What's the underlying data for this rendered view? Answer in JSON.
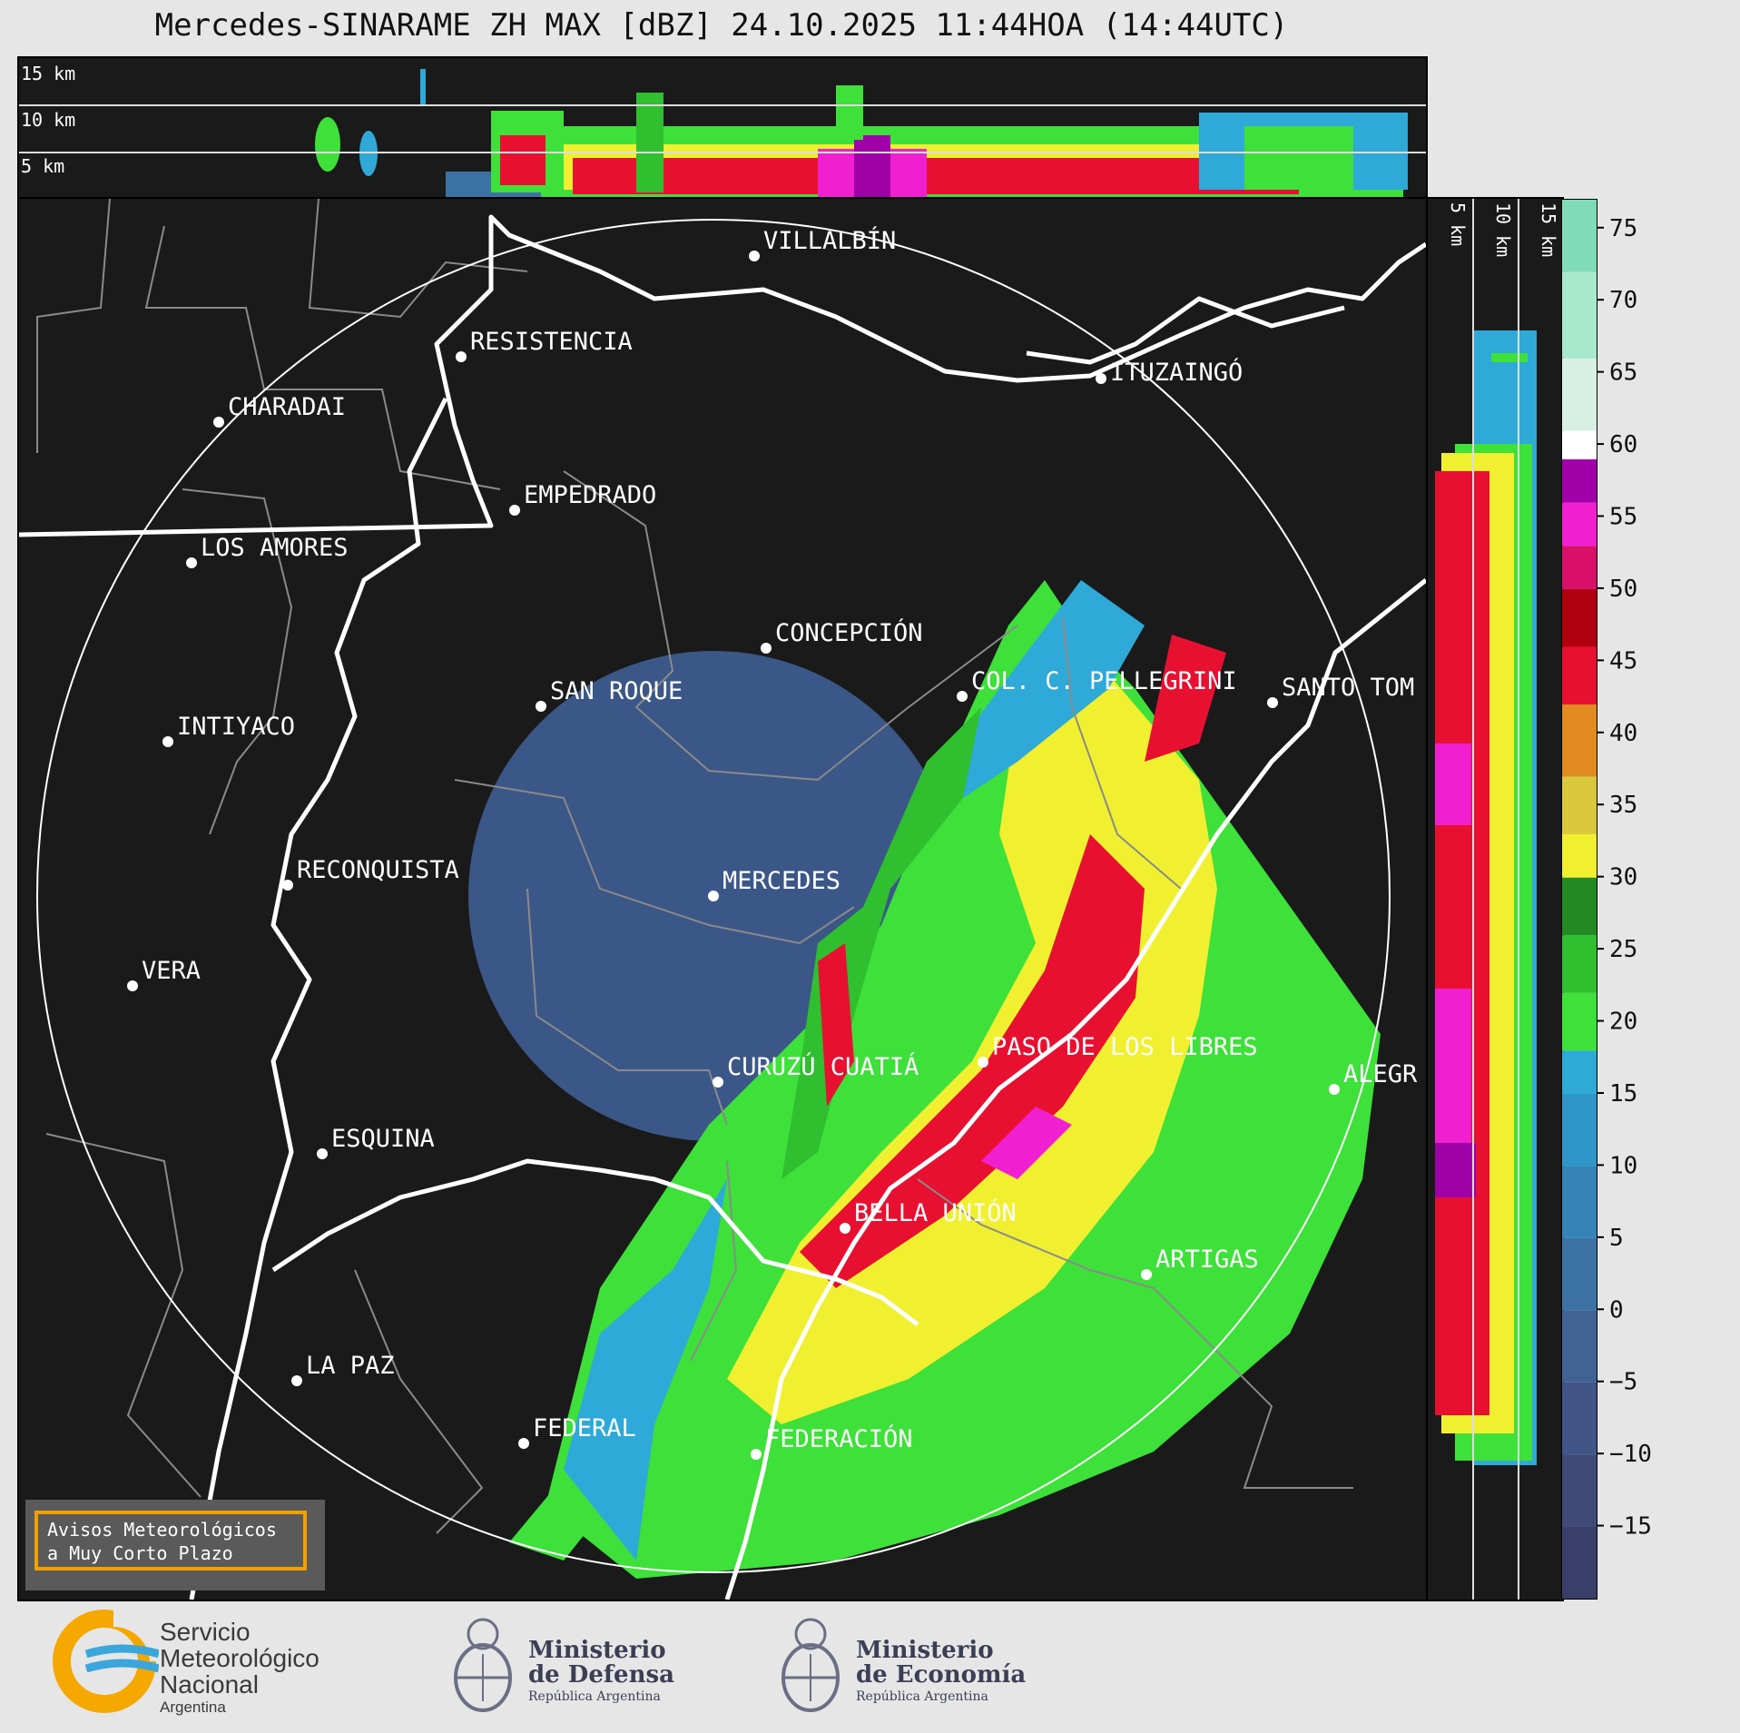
{
  "title": "Mercedes-SINARAME ZH MAX [dBZ] 24.10.2025 11:44HOA (14:44UTC)",
  "top_panel": {
    "height_labels": [
      "15 km",
      "10 km",
      "5 km"
    ]
  },
  "side_panel": {
    "height_labels": [
      "5 km",
      "10 km",
      "15 km"
    ]
  },
  "map": {
    "radar_site": "MERCEDES",
    "cities": [
      "VILLALBÍN",
      "RESISTENCIA",
      "ITUZAINGÓ",
      "CHARADAI",
      "EMPEDRADO",
      "LOS AMORES",
      "CONCEPCIÓN",
      "COL. C. PELLEGRINI",
      "SANTO TOM",
      "SAN ROQUE",
      "INTIYACO",
      "MERCEDES",
      "RECONQUISTA",
      "VERA",
      "CURUZÚ CUATIÁ",
      "PASO DE LOS LIBRES",
      "ALEGR",
      "ESQUINA",
      "BELLA UNIÓN",
      "ARTIGAS",
      "LA PAZ",
      "FEDERAL",
      "FEDERACIÓN"
    ]
  },
  "colorbar": {
    "unit": "dBZ",
    "ticks": [
      "75",
      "70",
      "65",
      "60",
      "55",
      "50",
      "45",
      "40",
      "35",
      "30",
      "25",
      "20",
      "15",
      "10",
      "5",
      "0",
      "−5",
      "−10",
      "−15"
    ],
    "range": [
      -20,
      77
    ],
    "bands": [
      {
        "from": -20,
        "to": -15,
        "color": "#3a3f6a"
      },
      {
        "from": -15,
        "to": -10,
        "color": "#3f4a78"
      },
      {
        "from": -10,
        "to": -5,
        "color": "#415587"
      },
      {
        "from": -5,
        "to": 0,
        "color": "#406394"
      },
      {
        "from": 0,
        "to": 5,
        "color": "#3c72a3"
      },
      {
        "from": 5,
        "to": 10,
        "color": "#3584b8"
      },
      {
        "from": 10,
        "to": 15,
        "color": "#2f96c9"
      },
      {
        "from": 15,
        "to": 18,
        "color": "#2ea9d8"
      },
      {
        "from": 18,
        "to": 22,
        "color": "#3ee03a"
      },
      {
        "from": 22,
        "to": 26,
        "color": "#2fbf2f"
      },
      {
        "from": 26,
        "to": 30,
        "color": "#238a23"
      },
      {
        "from": 30,
        "to": 33,
        "color": "#f0f030"
      },
      {
        "from": 33,
        "to": 37,
        "color": "#d9c83c"
      },
      {
        "from": 37,
        "to": 42,
        "color": "#e08a20"
      },
      {
        "from": 42,
        "to": 46,
        "color": "#e81030"
      },
      {
        "from": 46,
        "to": 50,
        "color": "#b00010"
      },
      {
        "from": 50,
        "to": 53,
        "color": "#d8106a"
      },
      {
        "from": 53,
        "to": 56,
        "color": "#f020d0"
      },
      {
        "from": 56,
        "to": 59,
        "color": "#a000a8"
      },
      {
        "from": 59,
        "to": 61,
        "color": "#ffffff"
      },
      {
        "from": 61,
        "to": 66,
        "color": "#d8f0e4"
      },
      {
        "from": 66,
        "to": 72,
        "color": "#a8e8cc"
      },
      {
        "from": 72,
        "to": 77,
        "color": "#80dcb8"
      }
    ]
  },
  "legend": {
    "line1": "Avisos Meteorológicos",
    "line2": "a Muy Corto Plazo"
  },
  "logos": {
    "smn": {
      "line1": "Servicio",
      "line2": "Meteorológico",
      "line3": "Nacional",
      "line4": "Argentina"
    },
    "defensa": {
      "line1": "Ministerio",
      "line2": "de Defensa",
      "line3": "República Argentina"
    },
    "economia": {
      "line1": "Ministerio",
      "line2": "de Economía",
      "line3": "República Argentina"
    }
  }
}
